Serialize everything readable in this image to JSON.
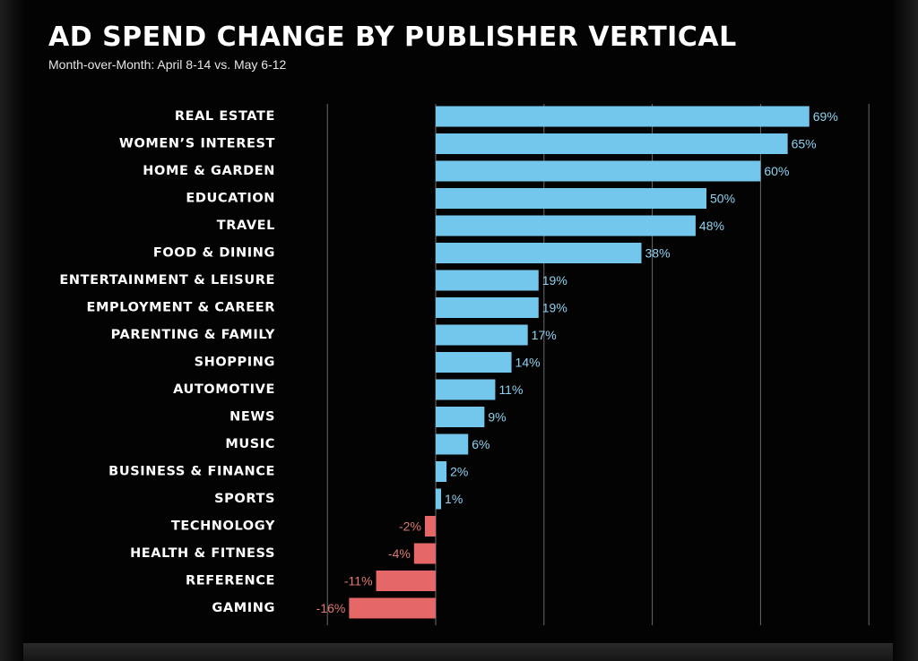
{
  "title": "AD SPEND CHANGE BY PUBLISHER VERTICAL",
  "subtitle": "Month-over-Month: April 8-14 vs. May 6-12",
  "colors": {
    "positive": "#74c7ec",
    "negative": "#e66767",
    "positive_label": "#8fd2f0",
    "negative_label": "#e07a72",
    "gridline": "#6b6b6b",
    "category_text": "#ffffff",
    "background": "#030303"
  },
  "chart_data": {
    "type": "bar",
    "orientation": "horizontal",
    "title": "AD SPEND CHANGE BY PUBLISHER VERTICAL",
    "subtitle": "Month-over-Month: April 8-14 vs. May 6-12",
    "categories": [
      "REAL ESTATE",
      "WOMEN’S INTEREST",
      "HOME & GARDEN",
      "EDUCATION",
      "TRAVEL",
      "FOOD & DINING",
      "ENTERTAINMENT & LEISURE",
      "EMPLOYMENT & CAREER",
      "PARENTING & FAMILY",
      "SHOPPING",
      "AUTOMOTIVE",
      "NEWS",
      "MUSIC",
      "BUSINESS & FINANCE",
      "SPORTS",
      "TECHNOLOGY",
      "HEALTH & FITNESS",
      "REFERENCE",
      "GAMING"
    ],
    "values": [
      69,
      65,
      60,
      50,
      48,
      38,
      19,
      19,
      17,
      14,
      11,
      9,
      6,
      2,
      1,
      -2,
      -4,
      -11,
      -16
    ],
    "value_labels": [
      "69%",
      "65%",
      "60%",
      "50%",
      "48%",
      "38%",
      "19%",
      "19%",
      "17%",
      "14%",
      "11%",
      "9%",
      "6%",
      "2%",
      "1%",
      "-2%",
      "-4%",
      "-11%",
      "-16%"
    ],
    "xlim": [
      -20,
      80
    ],
    "grid_values": [
      -20,
      0,
      20,
      40,
      60,
      80
    ],
    "grid": true,
    "legend": "none",
    "xlabel": "",
    "ylabel": ""
  }
}
